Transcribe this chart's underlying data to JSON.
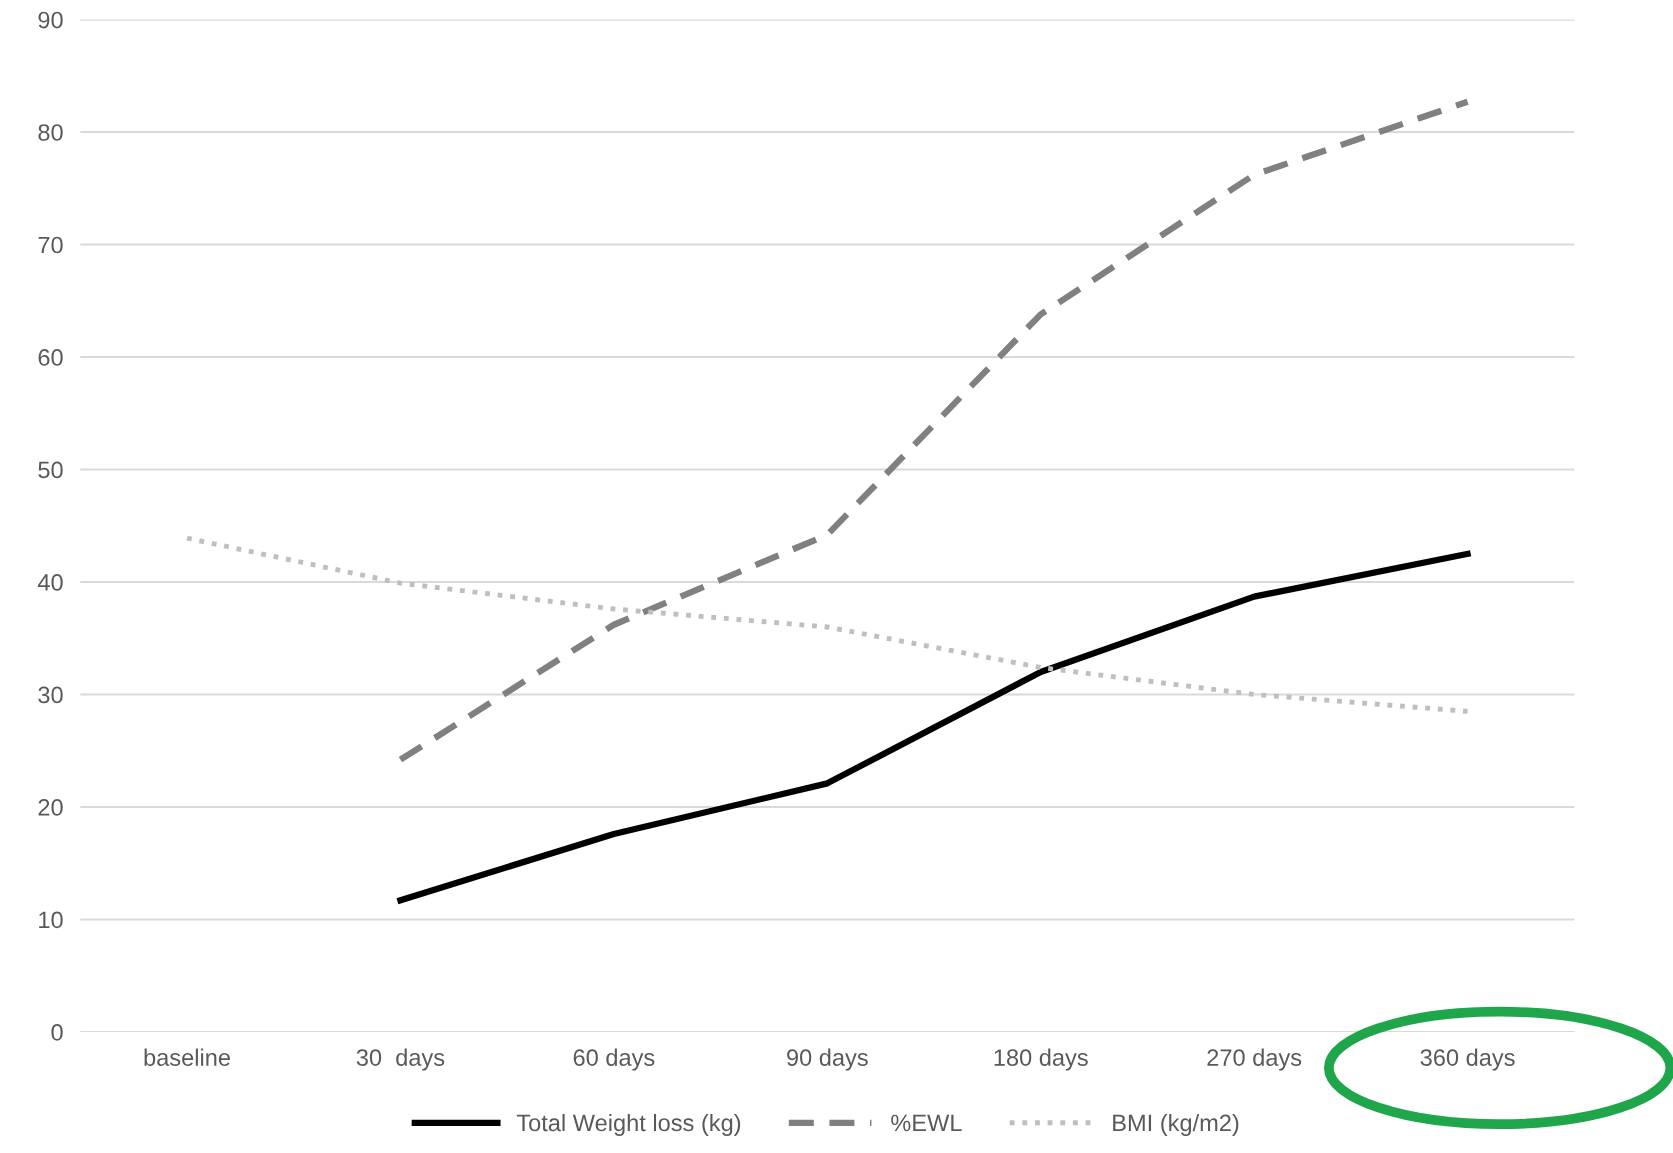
{
  "chart_data": {
    "type": "line",
    "categories": [
      "baseline",
      "30  days",
      "60 days",
      "90 days",
      "180 days",
      "270 days",
      "360 days"
    ],
    "series": [
      {
        "name": "Total Weight loss (kg)",
        "color": "#000000",
        "line_style": "solid",
        "values": [
          null,
          11.7,
          17.6,
          22.1,
          32.0,
          38.7,
          42.5
        ]
      },
      {
        "name": "%EWL",
        "color": "#808080",
        "line_style": "dashed",
        "values": [
          null,
          24.2,
          36.2,
          44.2,
          63.8,
          76.2,
          82.7
        ]
      },
      {
        "name": "BMI (kg/m2)",
        "color": "#bfbfbf",
        "line_style": "dotted",
        "values": [
          43.9,
          39.9,
          37.6,
          36.0,
          32.4,
          30.0,
          28.5
        ]
      }
    ],
    "ylim": [
      0,
      90
    ],
    "yticks": [
      0,
      10,
      20,
      30,
      40,
      50,
      60,
      70,
      80,
      90
    ],
    "grid": "y",
    "legend": "bottom",
    "marker": "none"
  }
}
